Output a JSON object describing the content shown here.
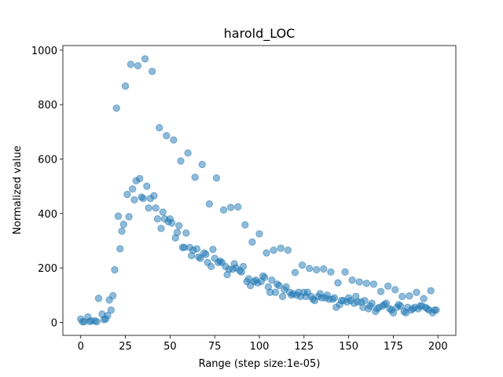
{
  "chart_data": {
    "type": "scatter",
    "title": "harold_LOC",
    "xlabel": "Range (step size:1e-05)",
    "ylabel": "Normalized value",
    "color": "#1f77b4",
    "x": [
      0,
      1,
      2,
      4,
      5,
      6,
      8,
      9,
      10,
      12,
      13,
      14,
      15,
      16,
      17,
      18,
      19,
      20,
      21,
      22,
      23,
      24,
      25,
      26,
      27,
      28,
      29,
      30,
      31,
      32,
      33,
      34,
      35,
      36,
      37,
      38,
      39,
      40,
      41,
      42,
      43,
      44,
      45,
      46,
      47,
      48,
      49,
      50,
      51,
      52,
      53,
      54,
      55,
      56,
      57,
      58,
      59,
      60,
      61,
      62,
      63,
      64,
      65,
      66,
      67,
      68,
      69,
      70,
      71,
      72,
      73,
      74,
      75,
      76,
      77,
      78,
      79,
      80,
      81,
      82,
      83,
      84,
      85,
      86,
      87,
      88,
      89,
      90,
      91,
      92,
      93,
      94,
      95,
      96,
      97,
      98,
      99,
      100,
      101,
      102,
      103,
      104,
      105,
      106,
      107,
      108,
      109,
      110,
      111,
      112,
      113,
      114,
      115,
      116,
      117,
      118,
      119,
      120,
      121,
      122,
      123,
      124,
      125,
      126,
      127,
      128,
      129,
      130,
      131,
      132,
      133,
      134,
      135,
      136,
      137,
      138,
      139,
      140,
      141,
      142,
      143,
      144,
      145,
      146,
      147,
      148,
      149,
      150,
      151,
      152,
      153,
      154,
      155,
      156,
      157,
      158,
      159,
      160,
      161,
      162,
      163,
      164,
      165,
      166,
      167,
      168,
      169,
      170,
      171,
      172,
      173,
      174,
      175,
      176,
      177,
      178,
      179,
      180,
      181,
      182,
      183,
      184,
      185,
      186,
      187,
      188,
      189,
      190,
      191,
      192,
      193,
      194,
      195,
      196,
      197,
      198,
      199
    ],
    "values": [
      12,
      2,
      2,
      20,
      3,
      5,
      5,
      2,
      88,
      30,
      10,
      12,
      25,
      82,
      45,
      98,
      193,
      787,
      390,
      270,
      335,
      360,
      868,
      470,
      388,
      948,
      490,
      450,
      520,
      943,
      528,
      460,
      455,
      968,
      500,
      420,
      455,
      922,
      465,
      420,
      380,
      715,
      345,
      405,
      380,
      686,
      370,
      380,
      365,
      670,
      310,
      330,
      355,
      593,
      275,
      275,
      328,
      622,
      275,
      245,
      265,
      533,
      270,
      240,
      235,
      580,
      255,
      250,
      220,
      435,
      205,
      268,
      235,
      530,
      220,
      225,
      220,
      413,
      205,
      175,
      195,
      422,
      195,
      215,
      200,
      424,
      190,
      185,
      205,
      358,
      150,
      160,
      135,
      295,
      150,
      155,
      145,
      325,
      150,
      170,
      165,
      255,
      130,
      110,
      155,
      265,
      110,
      140,
      135,
      272,
      95,
      120,
      130,
      265,
      110,
      100,
      105,
      183,
      100,
      110,
      95,
      210,
      110,
      95,
      110,
      198,
      95,
      85,
      80,
      193,
      95,
      105,
      90,
      196,
      90,
      100,
      85,
      185,
      85,
      90,
      55,
      145,
      65,
      80,
      80,
      185,
      75,
      90,
      80,
      155,
      70,
      95,
      75,
      148,
      75,
      55,
      80,
      143,
      50,
      60,
      70,
      140,
      40,
      50,
      55,
      113,
      60,
      65,
      70,
      133,
      50,
      45,
      35,
      120,
      55,
      65,
      60,
      95,
      40,
      35,
      55,
      97,
      45,
      50,
      55,
      110,
      50,
      60,
      60,
      87,
      55,
      50,
      45,
      116,
      35,
      45,
      45
    ],
    "xlim": [
      -10,
      210
    ],
    "ylim": [
      -48,
      1017
    ],
    "xticks": [
      0,
      25,
      50,
      75,
      100,
      125,
      150,
      175,
      200
    ],
    "yticks": [
      0,
      200,
      400,
      600,
      800,
      1000
    ]
  }
}
